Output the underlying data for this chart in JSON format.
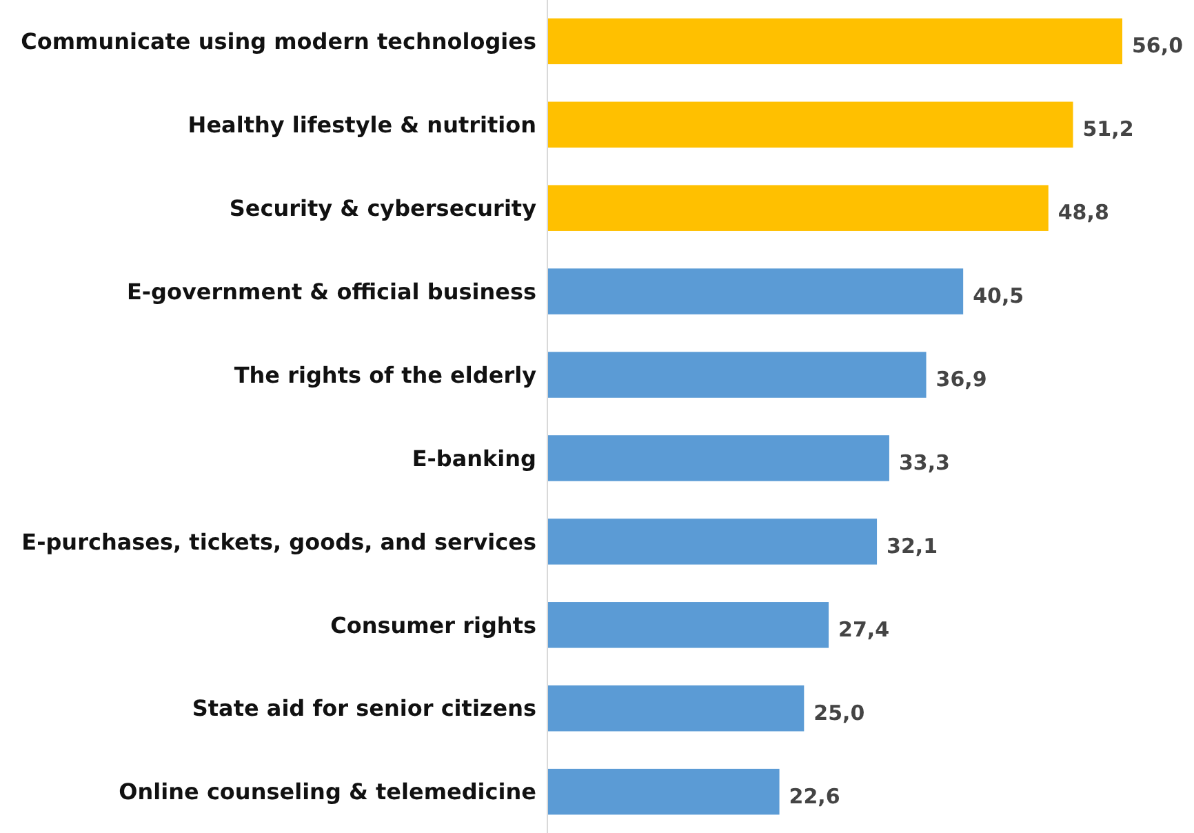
{
  "chart_data": {
    "type": "bar",
    "orientation": "horizontal",
    "categories": [
      "Communicate using modern technologies",
      "Healthy lifestyle & nutrition",
      "Security & cybersecurity",
      "E-government & official business",
      "The rights of the elderly",
      "E-banking",
      "E-purchases, tickets, goods, and services",
      "Consumer rights",
      "State aid for senior citizens",
      "Online counseling & telemedicine"
    ],
    "values": [
      56.0,
      51.2,
      48.8,
      40.5,
      36.9,
      33.3,
      32.1,
      27.4,
      25.0,
      22.6
    ],
    "colors": [
      "#ffc000",
      "#ffc000",
      "#ffc000",
      "#5b9bd5",
      "#5b9bd5",
      "#5b9bd5",
      "#5b9bd5",
      "#5b9bd5",
      "#5b9bd5",
      "#5b9bd5"
    ],
    "value_labels": [
      "56,0",
      "51,2",
      "48,8",
      "40,5",
      "36,9",
      "33,3",
      "32,1",
      "27,4",
      "25,0",
      "22,6"
    ]
  }
}
